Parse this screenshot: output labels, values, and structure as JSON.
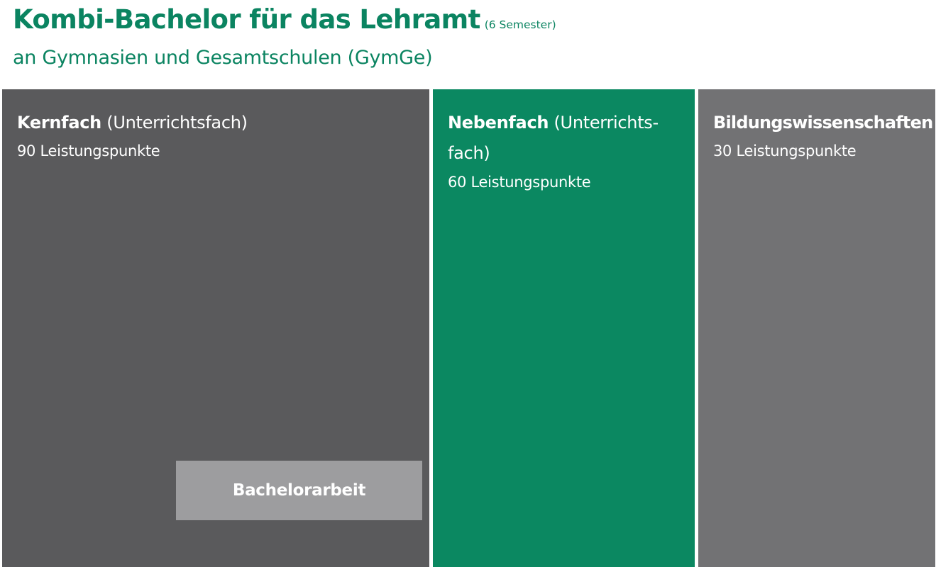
{
  "title": {
    "main": "Kombi-Bachelor für das Lehramt",
    "note": "(6 Semester)"
  },
  "subtitle": "an Gymnasien und Gesamtschulen (GymGe)",
  "colors": {
    "title": "#0b8461",
    "kernfach": "#5a5a5c",
    "nebenfach": "#0b8861",
    "bildungswissenschaften": "#727274",
    "bachelorarbeit": "#9d9d9f",
    "text_on_blocks": "#ffffff"
  },
  "blocks": {
    "kernfach": {
      "name": "Kernfach",
      "qualifier": " (Unterrichtsfach)",
      "points": "90 Leistungspunkte",
      "credit_points": 90
    },
    "nebenfach": {
      "name": "Nebenfach",
      "qualifier": " (Unterrichts-fach)",
      "points": "60 Leistungspunkte",
      "credit_points": 60
    },
    "bildungswissenschaften": {
      "name": "Bildungswissenschaften",
      "qualifier": "",
      "points": "30 Leistungspunkte",
      "credit_points": 30
    }
  },
  "thesis": {
    "label": "Bachelorarbeit"
  }
}
